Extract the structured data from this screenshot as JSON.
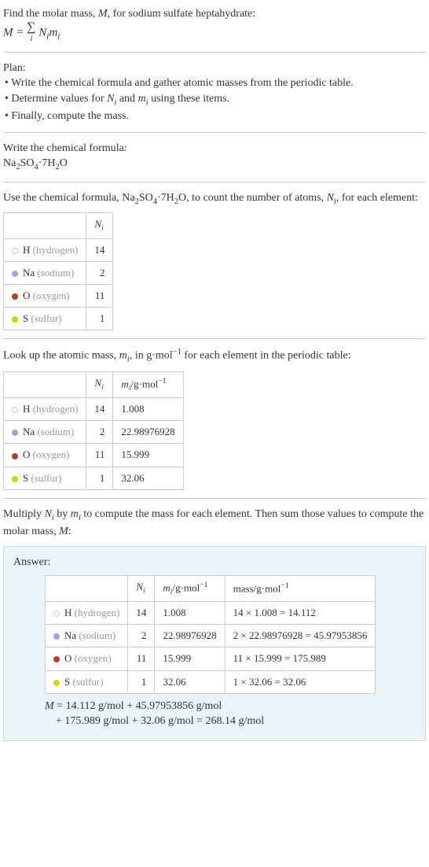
{
  "intro": {
    "line1_a": "Find the molar mass, ",
    "line1_b": ", for sodium sulfate heptahydrate:",
    "formula_lhs": "M = ",
    "formula_sum": "∑",
    "formula_idx": "i",
    "formula_rhs_a": " N",
    "formula_rhs_b": "m"
  },
  "plan": {
    "heading": "Plan:",
    "item1": "• Write the chemical formula and gather atomic masses from the periodic table.",
    "item2_a": "• Determine values for ",
    "item2_b": " and ",
    "item2_c": " using these items.",
    "item3": "• Finally, compute the mass."
  },
  "write": {
    "heading": "Write the chemical formula:",
    "formula_a": "Na",
    "formula_b": "SO",
    "formula_c": "·7H",
    "formula_d": "O",
    "sub2": "2",
    "sub4": "4"
  },
  "count": {
    "text_a": "Use the chemical formula, Na",
    "text_b": "SO",
    "text_c": "·7H",
    "text_d": "O, to count the number of atoms, ",
    "text_e": ", for each element:",
    "header_n": "N",
    "header_i": "i"
  },
  "elements": [
    {
      "dot_style": "ring",
      "color": "#fff",
      "sym": "H",
      "name": "(hydrogen)",
      "n": "14",
      "m": "1.008",
      "mass": "14 × 1.008 = 14.112"
    },
    {
      "dot_style": "fill",
      "color": "#b19cd9",
      "sym": "Na",
      "name": "(sodium)",
      "n": "2",
      "m": "22.98976928",
      "mass": "2 × 22.98976928 = 45.97953856"
    },
    {
      "dot_style": "fill",
      "color": "#c0392b",
      "sym": "O",
      "name": "(oxygen)",
      "n": "11",
      "m": "15.999",
      "mass": "11 × 15.999 = 175.989"
    },
    {
      "dot_style": "fill",
      "color": "#d4d400",
      "sym": "S",
      "name": "(sulfur)",
      "n": "1",
      "m": "32.06",
      "mass": "1 × 32.06 = 32.06"
    }
  ],
  "lookup": {
    "text_a": "Look up the atomic mass, ",
    "text_b": ", in g·mol",
    "text_c": " for each element in the periodic table:",
    "neg1": "−1",
    "header_m": "m",
    "unit": "/g·mol"
  },
  "multiply": {
    "text_a": "Multiply ",
    "text_b": " by ",
    "text_c": " to compute the mass for each element. Then sum those values to compute the molar mass, ",
    "text_d": ":"
  },
  "answer": {
    "label": "Answer:",
    "mass_header": "mass/g·mol",
    "final_a": "M",
    "final_b": " = 14.112 g/mol + 45.97953856 g/mol",
    "final_c": "+ 175.989 g/mol + 32.06 g/mol = 268.14 g/mol"
  },
  "M": "M",
  "N": "N",
  "m": "m",
  "i": "i"
}
